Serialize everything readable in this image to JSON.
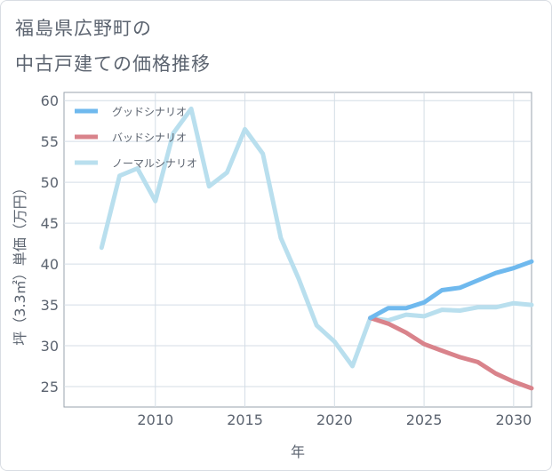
{
  "title": {
    "line1": "福島県広野町の",
    "line2": "中古戸建ての価格推移"
  },
  "chart_data": {
    "type": "line",
    "xlabel": "年",
    "ylabel": "坪（3.3㎡）単価（万円）",
    "xlim": [
      2004.9,
      2031
    ],
    "ylim": [
      22.5,
      61
    ],
    "x_ticks": [
      2010,
      2015,
      2020,
      2025,
      2030
    ],
    "y_ticks": [
      25,
      30,
      35,
      40,
      45,
      50,
      55,
      60
    ],
    "grid": true,
    "legend_position": "top-left",
    "series": [
      {
        "name": "グッドシナリオ",
        "color": "#6fb9ee",
        "x": [
          2022,
          2023,
          2024,
          2025,
          2026,
          2027,
          2028,
          2029,
          2030,
          2031
        ],
        "values": [
          33.4,
          34.6,
          34.6,
          35.3,
          36.8,
          37.1,
          38.0,
          38.9,
          39.5,
          40.3
        ]
      },
      {
        "name": "バッドシナリオ",
        "color": "#d9838b",
        "x": [
          2022,
          2023,
          2024,
          2025,
          2026,
          2027,
          2028,
          2029,
          2030,
          2031
        ],
        "values": [
          33.4,
          32.7,
          31.6,
          30.2,
          29.4,
          28.6,
          28.0,
          26.6,
          25.6,
          24.8
        ]
      },
      {
        "name": "ノーマルシナリオ",
        "color": "#b9dfee",
        "x": [
          2007,
          2008,
          2009,
          2010,
          2011,
          2012,
          2013,
          2014,
          2015,
          2016,
          2017,
          2018,
          2019,
          2020,
          2021,
          2022,
          2023,
          2024,
          2025,
          2026,
          2027,
          2028,
          2029,
          2030,
          2031
        ],
        "values": [
          42.0,
          50.8,
          51.7,
          47.7,
          56.0,
          59.0,
          49.5,
          51.2,
          56.5,
          53.5,
          43.2,
          38.2,
          32.5,
          30.5,
          27.5,
          33.4,
          33.1,
          33.8,
          33.6,
          34.4,
          34.3,
          34.7,
          34.7,
          35.2,
          35.0
        ]
      }
    ]
  }
}
